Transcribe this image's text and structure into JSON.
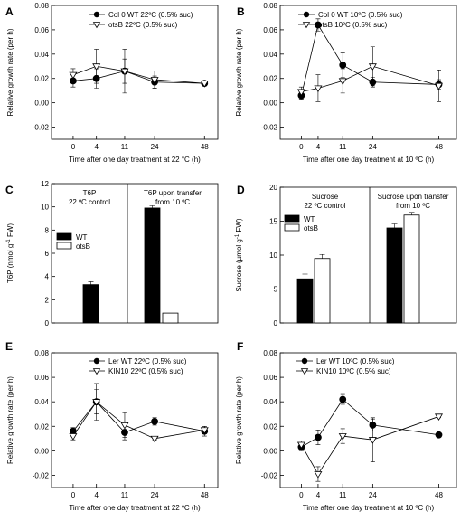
{
  "chart_data": [
    {
      "panel": "A",
      "type": "line",
      "xlabel": "Time after one day treatment at 22 °C (h)",
      "ylabel": "Relative growth rate (per h)",
      "x_tick_labels": [
        "0",
        "4",
        "11",
        "24",
        "48"
      ],
      "x_tick_values": [
        0,
        4,
        11,
        24,
        48
      ],
      "ylim": [
        -0.03,
        0.08
      ],
      "y_ticks": [
        -0.02,
        0.0,
        0.02,
        0.04,
        0.06,
        0.08
      ],
      "y_tick_labels": [
        "-0.02",
        "0.00",
        "0.02",
        "0.04",
        "0.06",
        "0.08"
      ],
      "legend_position": "top-right",
      "series": [
        {
          "name": "Col 0 WT 22ºC (0.5% suc)",
          "marker": "filled-circle",
          "x": [
            0,
            4,
            11,
            24,
            48
          ],
          "y": [
            0.018,
            0.02,
            0.026,
            0.017,
            0.016
          ],
          "err": [
            0.005,
            0.008,
            0.018,
            0.005,
            0.002
          ]
        },
        {
          "name": "otsB 22ºC (0.5% suc)",
          "marker": "open-triangle",
          "x": [
            0,
            4,
            11,
            24,
            48
          ],
          "y": [
            0.023,
            0.03,
            0.026,
            0.019,
            0.016
          ],
          "err": [
            0.005,
            0.014,
            0.01,
            0.007,
            0.002
          ]
        }
      ]
    },
    {
      "panel": "B",
      "type": "line",
      "xlabel": "Time after one day treatment at 10 ºC (h)",
      "ylabel": "Relative growth rate (per h)",
      "x_tick_labels": [
        "0",
        "4",
        "11",
        "24",
        "48"
      ],
      "x_tick_values": [
        0,
        4,
        11,
        24,
        48
      ],
      "ylim": [
        -0.03,
        0.08
      ],
      "y_ticks": [
        -0.02,
        0.0,
        0.02,
        0.04,
        0.06,
        0.08
      ],
      "y_tick_labels": [
        "-0.02",
        "0.00",
        "0.02",
        "0.04",
        "0.06",
        "0.08"
      ],
      "legend_position": "top-right",
      "series": [
        {
          "name": "Col 0 WT 10ºC (0.5% suc)",
          "marker": "filled-circle",
          "x": [
            0,
            4,
            11,
            24,
            48
          ],
          "y": [
            0.006,
            0.064,
            0.031,
            0.017,
            0.015
          ],
          "err": [
            0.003,
            0.005,
            0.01,
            0.004,
            0.004
          ]
        },
        {
          "name": "otsB 10ºC (0.5% suc)",
          "marker": "open-triangle",
          "x": [
            0,
            4,
            11,
            24,
            48
          ],
          "y": [
            0.009,
            0.012,
            0.018,
            0.03,
            0.014
          ],
          "err": [
            0.004,
            0.011,
            0.01,
            0.016,
            0.013
          ]
        }
      ]
    },
    {
      "panel": "C",
      "type": "bar",
      "ylabel": "T6P (nmol g-1 FW)",
      "ylim": [
        0,
        12
      ],
      "y_ticks": [
        0,
        2,
        4,
        6,
        8,
        10,
        12
      ],
      "y_tick_labels": [
        "0",
        "2",
        "4",
        "6",
        "8",
        "10",
        "12"
      ],
      "categories": [
        "T6P\n22 ºC control",
        "T6P upon transfer\nfrom  10 ºC"
      ],
      "series": [
        {
          "name": "WT",
          "fill": "#000000",
          "values": [
            3.3,
            9.9
          ],
          "err": [
            0.25,
            0.2
          ]
        },
        {
          "name": "otsB",
          "fill": "#ffffff",
          "values": [
            0.0,
            0.85
          ],
          "err": [
            0,
            0
          ]
        }
      ]
    },
    {
      "panel": "D",
      "type": "bar",
      "ylabel": "Sucrose (µmol g-1 FW)",
      "ylim": [
        0,
        20
      ],
      "y_ticks": [
        0,
        5,
        10,
        15,
        20
      ],
      "y_tick_labels": [
        "0",
        "5",
        "10",
        "15",
        "20"
      ],
      "categories": [
        "Sucrose\n22 ºC control",
        "Sucrose upon transfer\nfrom  10 ºC"
      ],
      "series": [
        {
          "name": "WT",
          "fill": "#000000",
          "values": [
            6.5,
            14.0
          ],
          "err": [
            0.7,
            0.6
          ]
        },
        {
          "name": "otsB",
          "fill": "#ffffff",
          "values": [
            9.5,
            15.9
          ],
          "err": [
            0.6,
            0.4
          ]
        }
      ]
    },
    {
      "panel": "E",
      "type": "line",
      "xlabel": "Time after one day treatment at 22 ºC (h)",
      "ylabel": "Relative growth rate (per h)",
      "x_tick_labels": [
        "0",
        "4",
        "11",
        "24",
        "48"
      ],
      "x_tick_values": [
        0,
        4,
        11,
        24,
        48
      ],
      "ylim": [
        -0.03,
        0.08
      ],
      "y_ticks": [
        -0.02,
        0.0,
        0.02,
        0.04,
        0.06,
        0.08
      ],
      "y_tick_labels": [
        "-0.02",
        "0.00",
        "0.02",
        "0.04",
        "0.06",
        "0.08"
      ],
      "legend_position": "top-right",
      "series": [
        {
          "name": "Ler WT 22ºC (0.5% suc)",
          "marker": "filled-circle",
          "x": [
            0,
            4,
            11,
            24,
            48
          ],
          "y": [
            0.016,
            0.04,
            0.015,
            0.024,
            0.016
          ],
          "err": [
            0.003,
            0.01,
            0.006,
            0.003,
            0.004
          ]
        },
        {
          "name": "KIN10 22ºC (0.5% suc)",
          "marker": "open-triangle",
          "x": [
            0,
            4,
            11,
            24,
            48
          ],
          "y": [
            0.012,
            0.04,
            0.021,
            0.01,
            0.017
          ],
          "err": [
            0.003,
            0.015,
            0.01,
            0.001,
            0.003
          ]
        }
      ]
    },
    {
      "panel": "F",
      "type": "line",
      "xlabel": "Time after one day treatment at 10 ºC (h)",
      "ylabel": "Relative growth rate (per h)",
      "x_tick_labels": [
        "0",
        "4",
        "11",
        "24",
        "48"
      ],
      "x_tick_values": [
        0,
        4,
        11,
        24,
        48
      ],
      "ylim": [
        -0.03,
        0.08
      ],
      "y_ticks": [
        -0.02,
        0.0,
        0.02,
        0.04,
        0.06,
        0.08
      ],
      "y_tick_labels": [
        "-0.02",
        "0.00",
        "0.02",
        "0.04",
        "0.06",
        "0.08"
      ],
      "legend_position": "top-right",
      "series": [
        {
          "name": "Ler WT 10ºC (0.5% suc)",
          "marker": "filled-circle",
          "x": [
            0,
            4,
            11,
            24,
            48
          ],
          "y": [
            0.003,
            0.011,
            0.042,
            0.021,
            0.013
          ],
          "err": [
            0.003,
            0.006,
            0.004,
            0.005,
            0.001
          ]
        },
        {
          "name": "KIN10 10ºC (0.5% suc)",
          "marker": "open-triangle",
          "x": [
            0,
            4,
            11,
            24,
            48
          ],
          "y": [
            0.005,
            -0.019,
            0.012,
            0.009,
            0.028
          ],
          "err": [
            0.003,
            0.006,
            0.006,
            0.018,
            0.001
          ]
        }
      ]
    }
  ]
}
